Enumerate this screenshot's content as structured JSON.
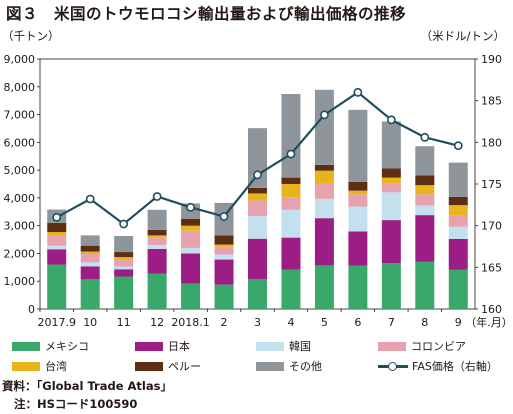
{
  "title": "図３　米国のトウモロコシ輸出量および輸出価格の推移",
  "unit_left": "（千トン）",
  "unit_right": "（米ドル/トン）",
  "x_unit_label": "（年.月）",
  "notes": {
    "source": "資料：「Global Trade Atlas」",
    "hs_code": "注：HSコード100590"
  },
  "colors": {
    "メキシコ": "#3aa86b",
    "日本": "#9c1d84",
    "韓国": "#c3e0ee",
    "コロンビア": "#e8a1ae",
    "台湾": "#e8b41c",
    "ペルー": "#5e2e14",
    "その他": "#8f969b",
    "FAS価格": "#1f4e5f"
  },
  "chart_data": {
    "type": "bar",
    "stacked": true,
    "categories": [
      "2017.9",
      "10",
      "11",
      "12",
      "2018.1",
      "2",
      "3",
      "4",
      "5",
      "6",
      "7",
      "8",
      "9"
    ],
    "left_axis": {
      "min": 0,
      "max": 9000,
      "step": 1000,
      "ticks": [
        "0",
        "1,000",
        "2,000",
        "3,000",
        "4,000",
        "5,000",
        "6,000",
        "7,000",
        "8,000",
        "9,000"
      ]
    },
    "right_axis": {
      "min": 160,
      "max": 190,
      "step": 5,
      "ticks": [
        "160",
        "165",
        "170",
        "175",
        "180",
        "185",
        "190"
      ]
    },
    "series": [
      {
        "name": "メキシコ",
        "values": [
          1600,
          1080,
          1170,
          1270,
          920,
          880,
          1080,
          1420,
          1570,
          1560,
          1650,
          1710,
          1410
        ]
      },
      {
        "name": "日本",
        "values": [
          550,
          450,
          260,
          890,
          1080,
          900,
          1450,
          1150,
          1700,
          1230,
          1550,
          1670,
          1110
        ]
      },
      {
        "name": "韓国",
        "values": [
          130,
          150,
          100,
          140,
          200,
          180,
          820,
          1000,
          700,
          900,
          1000,
          350,
          440
        ]
      },
      {
        "name": "コロンビア",
        "values": [
          380,
          300,
          270,
          280,
          620,
          280,
          560,
          450,
          550,
          440,
          330,
          400,
          400
        ]
      },
      {
        "name": "台湾",
        "values": [
          110,
          90,
          70,
          70,
          180,
          80,
          250,
          480,
          460,
          130,
          200,
          330,
          380
        ]
      },
      {
        "name": "ペルー",
        "values": [
          330,
          210,
          180,
          200,
          250,
          330,
          200,
          230,
          210,
          320,
          330,
          350,
          300
        ]
      },
      {
        "name": "その他",
        "values": [
          480,
          370,
          580,
          720,
          550,
          1170,
          2150,
          3010,
          2700,
          2590,
          1690,
          1050,
          1230
        ]
      }
    ],
    "line": {
      "name": "FAS価格（右軸）",
      "axis": "right",
      "values": [
        171.0,
        173.2,
        170.2,
        173.5,
        172.2,
        171.1,
        176.1,
        178.6,
        183.3,
        186.0,
        182.7,
        180.6,
        179.6
      ]
    },
    "legend": [
      "メキシコ",
      "日本",
      "韓国",
      "コロンビア",
      "台湾",
      "ペルー",
      "その他",
      "FAS価格（右軸）"
    ],
    "grid": false,
    "legend_position": "bottom"
  }
}
